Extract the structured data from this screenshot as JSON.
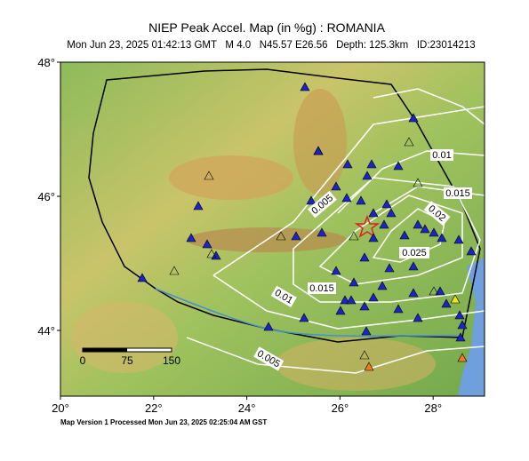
{
  "map": {
    "title": "NIEP Peak Accel. Map (in %g) : ROMANIA",
    "subtitle": "Mon Jun 23, 2025 01:42:13 GMT   M 4.0   N45.57 E26.56   Depth: 125.3km   ID:23014213",
    "footer": "Map Version 1 Processed Mon Jun 23, 2025 02:25:04 AM GST",
    "lat_ticks": [
      {
        "value": 48,
        "label": "48°"
      },
      {
        "value": 46,
        "label": "46°"
      },
      {
        "value": 44,
        "label": "44°"
      }
    ],
    "lon_ticks": [
      {
        "value": 20,
        "label": "20°"
      },
      {
        "value": 22,
        "label": "22°"
      },
      {
        "value": 24,
        "label": "24°"
      },
      {
        "value": 26,
        "label": "26°"
      },
      {
        "value": 28,
        "label": "28°"
      }
    ],
    "contour_labels": [
      "0.01",
      "0.015",
      "0.02",
      "0.025",
      "0.005",
      "0.01",
      "0.015",
      "0.005"
    ],
    "scale_labels": [
      "0",
      "75",
      "150"
    ]
  }
}
